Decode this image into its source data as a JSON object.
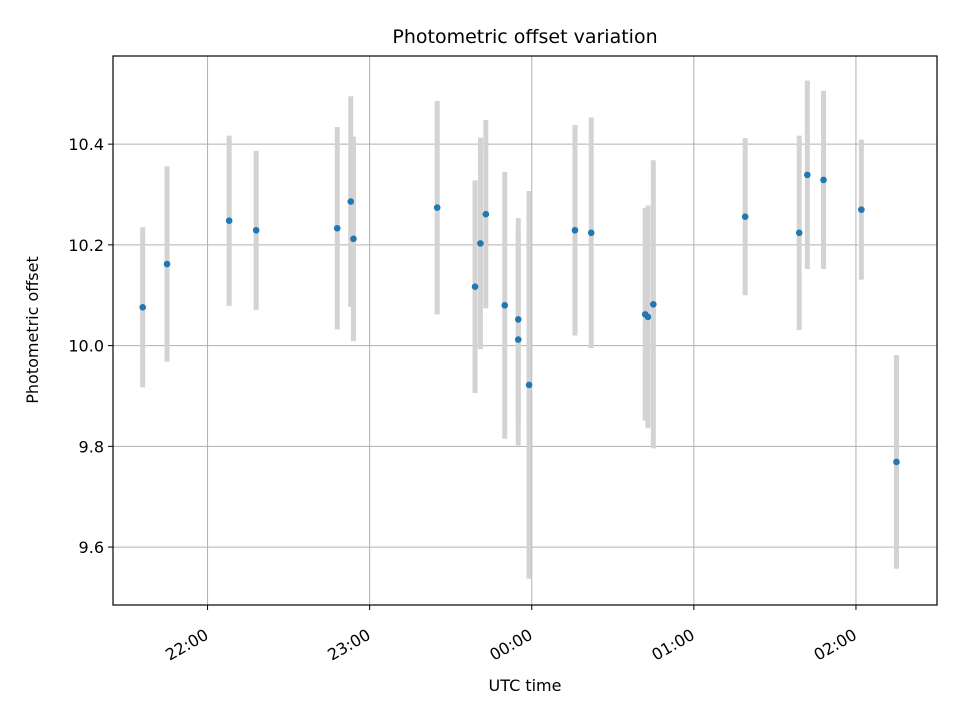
{
  "chart_data": {
    "type": "scatter",
    "title": "Photometric offset variation",
    "xlabel": "UTC time",
    "ylabel": "Photometric offset",
    "x_axis_type": "time",
    "x_range": [
      "21:25",
      "02:30"
    ],
    "ylim": [
      9.485,
      10.575
    ],
    "grid": true,
    "x_ticks": [
      {
        "time": "22:00",
        "label": "22:00"
      },
      {
        "time": "23:00",
        "label": "23:00"
      },
      {
        "time": "00:00",
        "label": "00:00"
      },
      {
        "time": "01:00",
        "label": "01:00"
      },
      {
        "time": "02:00",
        "label": "02:00"
      }
    ],
    "y_ticks": [
      {
        "value": 9.6,
        "label": "9.6"
      },
      {
        "value": 9.8,
        "label": "9.8"
      },
      {
        "value": 10.0,
        "label": "10.0"
      },
      {
        "value": 10.2,
        "label": "10.2"
      },
      {
        "value": 10.4,
        "label": "10.4"
      }
    ],
    "colors": {
      "marker": "#1f77b4",
      "errorbar": "#d3d3d3",
      "grid": "#b0b0b0"
    },
    "points": [
      {
        "time": "21:36",
        "y": 10.076,
        "err": 0.159
      },
      {
        "time": "21:45",
        "y": 10.162,
        "err": 0.194
      },
      {
        "time": "22:08",
        "y": 10.248,
        "err": 0.169
      },
      {
        "time": "22:18",
        "y": 10.229,
        "err": 0.158
      },
      {
        "time": "22:48",
        "y": 10.233,
        "err": 0.201
      },
      {
        "time": "22:53",
        "y": 10.286,
        "err": 0.209
      },
      {
        "time": "22:54",
        "y": 10.212,
        "err": 0.203
      },
      {
        "time": "23:25",
        "y": 10.274,
        "err": 0.212
      },
      {
        "time": "23:39",
        "y": 10.117,
        "err": 0.211
      },
      {
        "time": "23:41",
        "y": 10.203,
        "err": 0.21
      },
      {
        "time": "23:43",
        "y": 10.261,
        "err": 0.187
      },
      {
        "time": "23:50",
        "y": 10.08,
        "err": 0.265
      },
      {
        "time": "23:55",
        "y": 10.052,
        "err": 0.201
      },
      {
        "time": "23:55",
        "y": 10.012,
        "err": 0.21
      },
      {
        "time": "23:59",
        "y": 9.922,
        "err": 0.385
      },
      {
        "time": "00:16",
        "y": 10.229,
        "err": 0.209
      },
      {
        "time": "00:22",
        "y": 10.224,
        "err": 0.229
      },
      {
        "time": "00:42",
        "y": 10.062,
        "err": 0.211
      },
      {
        "time": "00:43",
        "y": 10.057,
        "err": 0.221
      },
      {
        "time": "00:45",
        "y": 10.082,
        "err": 0.286
      },
      {
        "time": "01:19",
        "y": 10.256,
        "err": 0.156
      },
      {
        "time": "01:39",
        "y": 10.224,
        "err": 0.193
      },
      {
        "time": "01:42",
        "y": 10.339,
        "err": 0.187
      },
      {
        "time": "01:48",
        "y": 10.329,
        "err": 0.177
      },
      {
        "time": "02:02",
        "y": 10.27,
        "err": 0.139
      },
      {
        "time": "02:15",
        "y": 9.769,
        "err": 0.212
      }
    ]
  }
}
